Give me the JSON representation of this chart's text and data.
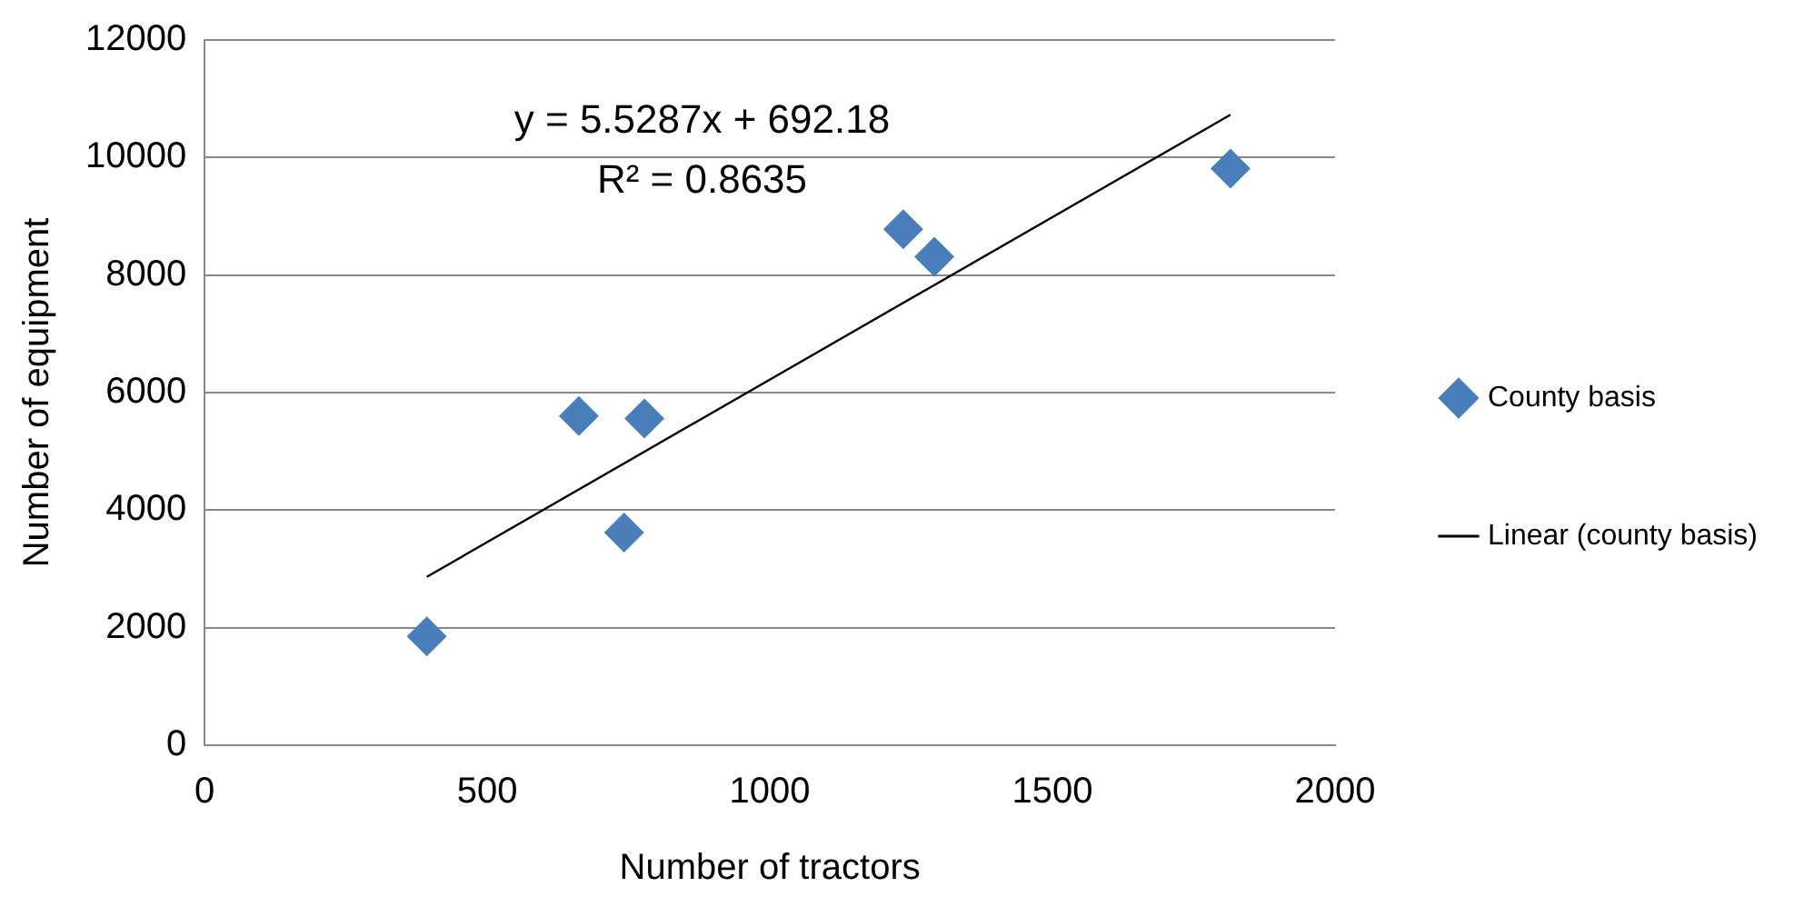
{
  "chart_data": {
    "type": "scatter",
    "xlabel": "Number of tractors",
    "ylabel": "Number of equipment",
    "series": [
      {
        "name": "County basis",
        "color": "#4a7ebb",
        "x": [
          393,
          662,
          778,
          742,
          1236,
          1291,
          1815
        ],
        "values": [
          1850,
          5600,
          5560,
          3620,
          8780,
          8310,
          9810
        ],
        "marker": "diamond"
      },
      {
        "name": "Linear (county basis)",
        "type": "line",
        "color": "#000000",
        "x": [
          393,
          1815
        ],
        "values": [
          2865,
          10727
        ],
        "marker": "none",
        "line_style": "solid"
      }
    ],
    "xlim": [
      0,
      2000
    ],
    "xticks": [
      0,
      500,
      1000,
      1500,
      2000
    ],
    "ylim": [
      0,
      12000
    ],
    "yticks": [
      0,
      2000,
      4000,
      6000,
      8000,
      10000,
      12000
    ],
    "grid": "y",
    "legend": "right",
    "annotations": [
      "y = 5.5287x + 692.18",
      "R² = 0.8635"
    ]
  }
}
